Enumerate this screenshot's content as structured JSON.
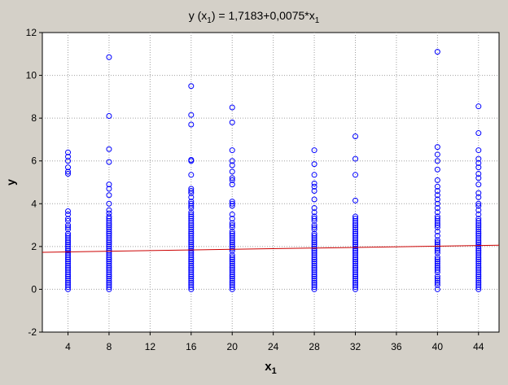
{
  "chart_data": {
    "type": "scatter",
    "title": {
      "prefix": "y (x",
      "prefix_sub": "1",
      "middle": ") = 1,7183+0,0075*x",
      "suffix_sub": "1"
    },
    "xlabel": {
      "base": "x",
      "sub": "1"
    },
    "ylabel": "y",
    "xlim": [
      1.5,
      46
    ],
    "ylim": [
      -2,
      12
    ],
    "xticks": [
      4,
      8,
      12,
      16,
      20,
      24,
      28,
      32,
      36,
      40,
      44
    ],
    "yticks": [
      -2,
      0,
      2,
      4,
      6,
      8,
      10,
      12
    ],
    "grid": true,
    "colors": {
      "points": "#0000ff",
      "fit_line": "#cc0000",
      "background": "#d4d0c8",
      "plot_area": "#ffffff"
    },
    "regression": {
      "intercept": 1.7183,
      "slope": 0.0075
    },
    "series": [
      {
        "x": 4,
        "y": [
          6.4,
          6.2,
          6.0,
          5.7,
          5.5,
          5.4,
          3.65,
          3.5,
          3.3,
          3.2,
          3.0,
          2.9,
          2.8,
          2.6,
          2.5,
          2.4,
          2.3,
          2.2,
          2.1,
          2.0,
          1.9,
          1.8,
          1.7,
          1.6,
          1.5,
          1.4,
          1.3,
          1.2,
          1.1,
          1.0,
          0.9,
          0.8,
          0.7,
          0.6,
          0.5,
          0.4,
          0.3,
          0.2,
          0.1,
          0.0
        ]
      },
      {
        "x": 8,
        "y": [
          10.85,
          8.1,
          6.55,
          5.95,
          4.9,
          4.7,
          4.4,
          4.0,
          3.7,
          3.55,
          3.4,
          3.3,
          3.2,
          3.1,
          3.0,
          2.9,
          2.8,
          2.7,
          2.6,
          2.5,
          2.4,
          2.3,
          2.2,
          2.1,
          2.0,
          1.9,
          1.8,
          1.7,
          1.6,
          1.5,
          1.4,
          1.3,
          1.2,
          1.1,
          1.0,
          0.9,
          0.8,
          0.7,
          0.6,
          0.5,
          0.4,
          0.3,
          0.2,
          0.1,
          0.0
        ]
      },
      {
        "x": 16,
        "y": [
          9.5,
          8.15,
          7.7,
          6.05,
          6.0,
          5.35,
          4.7,
          4.6,
          4.5,
          4.3,
          4.1,
          4.0,
          3.9,
          3.8,
          3.6,
          3.5,
          3.4,
          3.3,
          3.2,
          3.1,
          3.0,
          2.9,
          2.8,
          2.7,
          2.6,
          2.5,
          2.4,
          2.3,
          2.2,
          2.1,
          2.0,
          1.9,
          1.8,
          1.7,
          1.6,
          1.5,
          1.4,
          1.3,
          1.2,
          1.1,
          1.0,
          0.9,
          0.8,
          0.7,
          0.6,
          0.5,
          0.4,
          0.3,
          0.2,
          0.1,
          0.0
        ]
      },
      {
        "x": 20,
        "y": [
          8.5,
          7.8,
          6.5,
          6.0,
          5.8,
          5.5,
          5.2,
          5.1,
          4.9,
          4.1,
          4.0,
          3.9,
          3.5,
          3.3,
          3.1,
          3.0,
          2.9,
          2.7,
          2.6,
          2.5,
          2.4,
          2.3,
          2.2,
          2.1,
          2.0,
          1.9,
          1.8,
          1.6,
          1.5,
          1.4,
          1.3,
          1.2,
          1.1,
          1.0,
          0.9,
          0.8,
          0.7,
          0.6,
          0.5,
          0.4,
          0.3,
          0.2,
          0.1,
          0.0
        ]
      },
      {
        "x": 28,
        "y": [
          6.5,
          5.85,
          5.35,
          4.95,
          4.8,
          4.6,
          4.2,
          3.8,
          3.6,
          3.4,
          3.3,
          3.2,
          3.0,
          2.9,
          2.8,
          2.6,
          2.5,
          2.4,
          2.3,
          2.2,
          2.1,
          2.0,
          1.9,
          1.8,
          1.7,
          1.6,
          1.5,
          1.4,
          1.3,
          1.2,
          1.1,
          1.0,
          0.9,
          0.8,
          0.7,
          0.6,
          0.5,
          0.4,
          0.3,
          0.2,
          0.1,
          0.0
        ]
      },
      {
        "x": 32,
        "y": [
          7.15,
          6.1,
          5.35,
          4.15,
          3.4,
          3.3,
          3.2,
          3.1,
          3.0,
          2.9,
          2.8,
          2.7,
          2.6,
          2.5,
          2.4,
          2.3,
          2.2,
          2.1,
          2.0,
          1.9,
          1.8,
          1.7,
          1.6,
          1.5,
          1.4,
          1.3,
          1.2,
          1.1,
          1.0,
          0.9,
          0.8,
          0.7,
          0.6,
          0.5,
          0.4,
          0.3,
          0.2,
          0.1,
          0.0
        ]
      },
      {
        "x": 40,
        "y": [
          11.1,
          6.65,
          6.3,
          6.0,
          5.6,
          5.1,
          4.8,
          4.6,
          4.4,
          4.2,
          4.0,
          3.8,
          3.6,
          3.4,
          3.3,
          3.2,
          3.1,
          3.0,
          2.9,
          2.7,
          2.5,
          2.3,
          2.2,
          2.1,
          2.0,
          1.9,
          1.8,
          1.7,
          1.5,
          1.4,
          1.3,
          1.2,
          1.1,
          1.0,
          0.9,
          0.8,
          0.6,
          0.5,
          0.4,
          0.3,
          0.2,
          0.0
        ]
      },
      {
        "x": 44,
        "y": [
          8.55,
          7.3,
          6.5,
          6.1,
          5.9,
          5.7,
          5.4,
          5.2,
          4.9,
          4.5,
          4.3,
          4.0,
          3.9,
          3.7,
          3.5,
          3.3,
          3.2,
          3.1,
          3.0,
          2.9,
          2.8,
          2.7,
          2.6,
          2.5,
          2.4,
          2.3,
          2.2,
          2.1,
          2.0,
          1.9,
          1.8,
          1.7,
          1.6,
          1.5,
          1.4,
          1.3,
          1.2,
          1.1,
          1.0,
          0.9,
          0.8,
          0.7,
          0.6,
          0.5,
          0.4,
          0.3,
          0.2,
          0.1,
          0.0
        ]
      }
    ]
  }
}
